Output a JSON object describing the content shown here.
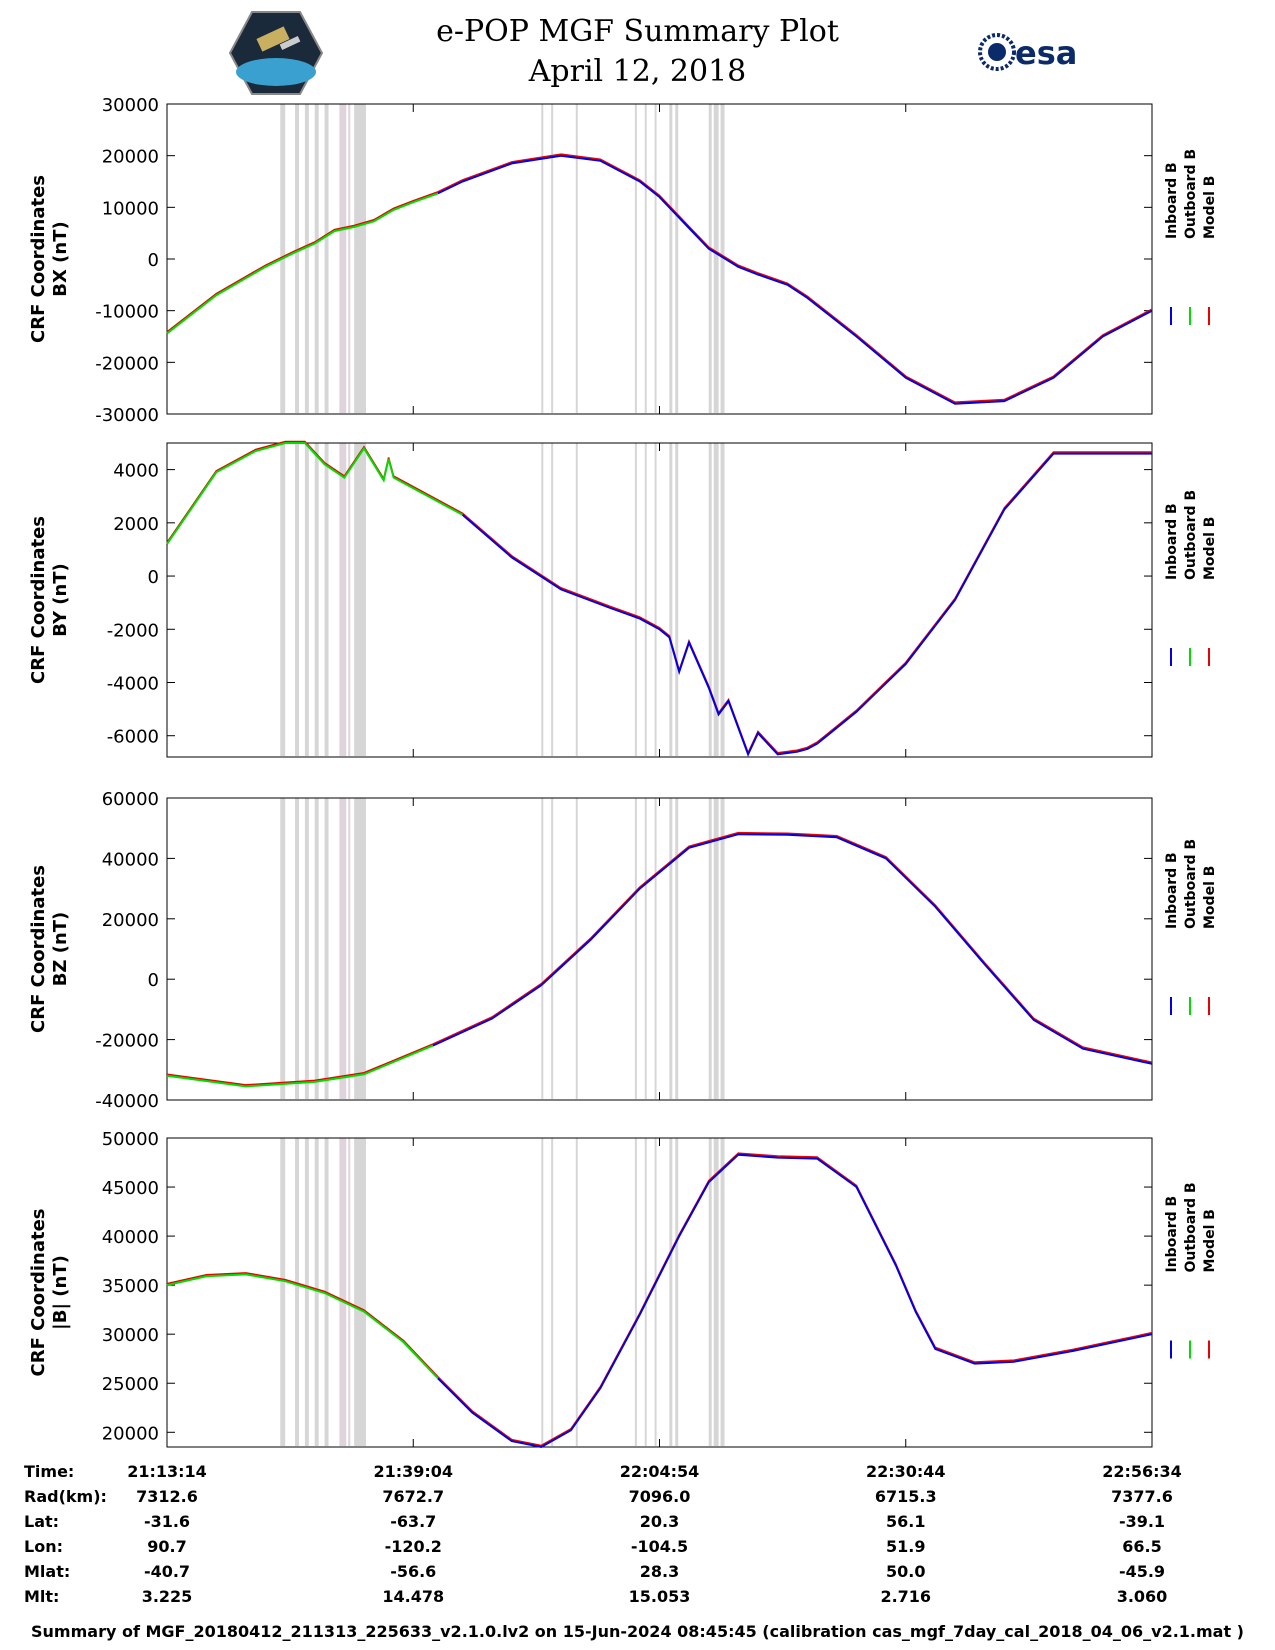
{
  "title": {
    "line1": "e-POP MGF Summary Plot",
    "line2": "April 12, 2018"
  },
  "logos": {
    "left": "cassiope-mission-emblem",
    "right_text": "esa"
  },
  "colors": {
    "inboard": "#0000e0",
    "outboard": "#00dd00",
    "model": "#ee0000",
    "shade": "#d6d6d6",
    "shade_overlap": "#e0d4dc"
  },
  "legend": [
    "Inboard B",
    "Outboard B",
    "Model B"
  ],
  "chart_data": [
    {
      "type": "line",
      "panel": "BX",
      "ylabel": [
        "CRF Coordinates",
        "BX (nT)"
      ],
      "ylim": [
        -30000,
        30000
      ],
      "yticks": [
        30000,
        20000,
        10000,
        0,
        -10000,
        -20000,
        -30000
      ],
      "ytick_labels": [
        "30000",
        "20000",
        "10000",
        "0",
        "-10000",
        "-20000",
        "-30000"
      ],
      "outboard_until": 27.5,
      "x": [
        0,
        5,
        10,
        13,
        15,
        17,
        19,
        21,
        23,
        25,
        27.5,
        30,
        35,
        40,
        44,
        48,
        50,
        53,
        55,
        58,
        60,
        63,
        65,
        70,
        75,
        80,
        85,
        90,
        95,
        100
      ],
      "values": [
        -14400,
        -7000,
        -1500,
        1300,
        3000,
        5400,
        6200,
        7300,
        9500,
        11000,
        12700,
        15000,
        18500,
        20000,
        19000,
        15000,
        12000,
        6000,
        2000,
        -1500,
        -3000,
        -5000,
        -7500,
        -15000,
        -23000,
        -28000,
        -27500,
        -23000,
        -15000,
        -10000
      ]
    },
    {
      "type": "line",
      "panel": "BY",
      "ylabel": [
        "CRF Coordinates",
        "BY (nT)"
      ],
      "ylim": [
        -6800,
        5000
      ],
      "yticks": [
        4000,
        2000,
        0,
        -2000,
        -4000,
        -6000
      ],
      "ytick_labels": [
        "4000",
        "2000",
        "0",
        "-2000",
        "-4000",
        "-6000"
      ],
      "outboard_until": 30,
      "x": [
        0,
        5,
        9,
        12,
        14,
        16,
        18,
        20,
        22,
        22.5,
        23,
        25,
        30,
        35,
        40,
        45,
        48,
        50,
        51,
        52,
        53,
        55,
        56,
        57,
        59,
        60,
        62,
        63,
        64,
        65,
        66,
        67,
        70,
        75,
        80,
        85,
        90,
        95,
        100
      ],
      "values": [
        1200,
        3900,
        4700,
        5000,
        5000,
        4200,
        3700,
        4800,
        3600,
        4400,
        3700,
        3300,
        2300,
        700,
        -500,
        -1200,
        -1600,
        -2000,
        -2300,
        -3600,
        -2500,
        -4200,
        -5200,
        -4700,
        -6700,
        -5900,
        -6700,
        -6650,
        -6600,
        -6500,
        -6300,
        -6000,
        -5100,
        -3300,
        -900,
        2500,
        4600,
        4600,
        4600
      ]
    },
    {
      "type": "line",
      "panel": "BZ",
      "ylabel": [
        "CRF Coordinates",
        "BZ (nT)"
      ],
      "ylim": [
        -40000,
        60000
      ],
      "yticks": [
        60000,
        40000,
        20000,
        0,
        -20000,
        -40000
      ],
      "ytick_labels": [
        "60000",
        "40000",
        "20000",
        "0",
        "-20000",
        "-40000"
      ],
      "outboard_until": 27,
      "x": [
        0,
        8,
        15,
        20,
        27,
        33,
        38,
        43,
        48,
        53,
        58,
        63,
        68,
        73,
        78,
        83,
        88,
        93,
        100
      ],
      "values": [
        -32000,
        -35500,
        -34000,
        -31500,
        -22000,
        -13000,
        -2000,
        13000,
        30000,
        43500,
        48000,
        47800,
        47000,
        40000,
        24000,
        5000,
        -13500,
        -23000,
        -28000
      ]
    },
    {
      "type": "line",
      "panel": "B",
      "ylabel": [
        "CRF Coordinates",
        "|B| (nT)"
      ],
      "ylim": [
        18500,
        50000
      ],
      "yticks": [
        50000,
        45000,
        40000,
        35000,
        30000,
        25000,
        20000
      ],
      "ytick_labels": [
        "50000",
        "45000",
        "40000",
        "35000",
        "30000",
        "25000",
        "20000"
      ],
      "outboard_until": 27.5,
      "x": [
        0,
        4,
        8,
        12,
        16,
        20,
        24,
        27.5,
        31,
        35,
        38,
        41,
        44,
        48,
        52,
        55,
        58,
        62,
        66,
        70,
        74,
        76,
        78,
        82,
        86,
        92,
        100
      ],
      "values": [
        35000,
        35900,
        36100,
        35400,
        34200,
        32300,
        29200,
        25500,
        22000,
        19100,
        18500,
        20200,
        24500,
        32000,
        40000,
        45500,
        48300,
        48000,
        47900,
        45000,
        37000,
        32300,
        28500,
        27000,
        27200,
        28300,
        30000
      ]
    }
  ],
  "shade_bands": [
    [
      11.5,
      12
    ],
    [
      13,
      13.4
    ],
    [
      14,
      14.4
    ],
    [
      15,
      15.4
    ],
    [
      16,
      16.4
    ],
    [
      17.5,
      18.2
    ],
    [
      18.4,
      18.6
    ],
    [
      19,
      20.2
    ],
    [
      38,
      38.2
    ],
    [
      39,
      39.2
    ],
    [
      41.5,
      41.7
    ],
    [
      47.5,
      47.7
    ],
    [
      48.5,
      48.7
    ],
    [
      49.5,
      49.7
    ],
    [
      51,
      51.3
    ],
    [
      51.6,
      51.9
    ],
    [
      55,
      55.3
    ],
    [
      55.5,
      56
    ],
    [
      56.2,
      56.6
    ]
  ],
  "time_axis": {
    "x_tick_positions": [
      0,
      25,
      50,
      75,
      100
    ],
    "rows": [
      {
        "label": "Time:",
        "values": [
          "21:13:14",
          "21:39:04",
          "22:04:54",
          "22:30:44",
          "22:56:34"
        ]
      },
      {
        "label": "Rad(km):",
        "values": [
          "7312.6",
          "7672.7",
          "7096.0",
          "6715.3",
          "7377.6"
        ]
      },
      {
        "label": "Lat:",
        "values": [
          "-31.6",
          "-63.7",
          "20.3",
          "56.1",
          "-39.1"
        ]
      },
      {
        "label": "Lon:",
        "values": [
          "90.7",
          "-120.2",
          "-104.5",
          "51.9",
          "66.5"
        ]
      },
      {
        "label": "Mlat:",
        "values": [
          "-40.7",
          "-56.6",
          "28.3",
          "50.0",
          "-45.9"
        ]
      },
      {
        "label": "Mlt:",
        "values": [
          "3.225",
          "14.478",
          "15.053",
          "2.716",
          "3.060"
        ]
      }
    ]
  },
  "footer": "Summary of MGF_20180412_211313_225633_v2.1.0.lv2 on 15-Jun-2024 08:45:45 (calibration cas_mgf_7day_cal_2018_04_06_v2.1.mat )"
}
